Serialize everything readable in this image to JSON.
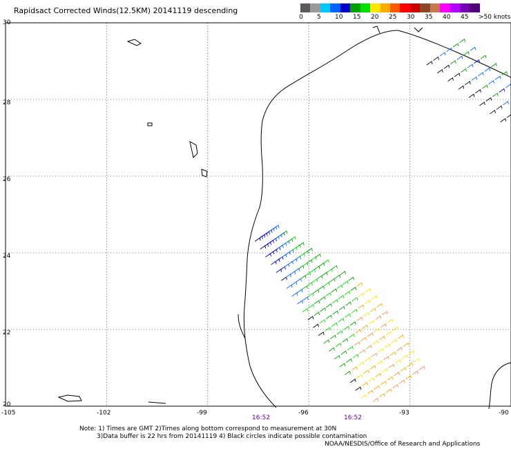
{
  "title": "Rapidsact Corrected Winds(12.5KM) 20141119 descending",
  "legend": {
    "colors": [
      "#5a5a5a",
      "#9a9a9a",
      "#00c8ff",
      "#0064ff",
      "#0000c8",
      "#00a000",
      "#00e000",
      "#ffe600",
      "#ffaa00",
      "#ff5a00",
      "#ff0000",
      "#c80000",
      "#8c4628",
      "#c87850",
      "#ff00ff",
      "#b400ff",
      "#7800b4",
      "#500078"
    ],
    "labels": [
      "0",
      "5",
      "10",
      "15",
      "20",
      "25",
      "30",
      "35",
      "40",
      "45",
      ">50 knots"
    ],
    "unit": "knots"
  },
  "axes": {
    "lon_ticks": [
      "-105",
      "-102",
      "-99",
      "-96",
      "-93",
      "-90"
    ],
    "lat_ticks": [
      "30",
      "28",
      "26",
      "24",
      "22",
      "20"
    ],
    "lon_range": [
      -105,
      -90
    ],
    "lat_range": [
      20,
      30
    ]
  },
  "times": [
    {
      "label": "16:52",
      "lon": -97.5
    },
    {
      "label": "16:52",
      "lon": -94.7
    }
  ],
  "notes": {
    "line1": "Note: 1) Times are GMT 2)Times along bottom correspond to measurement at 30N",
    "line2": "3)Data buffer is 22 hrs from 20141119 4) Black circles indicate possible contamination",
    "line3": "NOAA/NESDIS/Office of Research and Applications"
  },
  "swaths": [
    {
      "name": "gulf-swath",
      "lon0": -97.6,
      "lat0": 24.3,
      "lon1": -94.3,
      "lat1": 20.0,
      "width": 2.1
    },
    {
      "name": "ne-swath",
      "lon0": -92.5,
      "lat0": 28.9,
      "lon1": -90.0,
      "lat1": 27.2,
      "width": 1.3
    }
  ]
}
